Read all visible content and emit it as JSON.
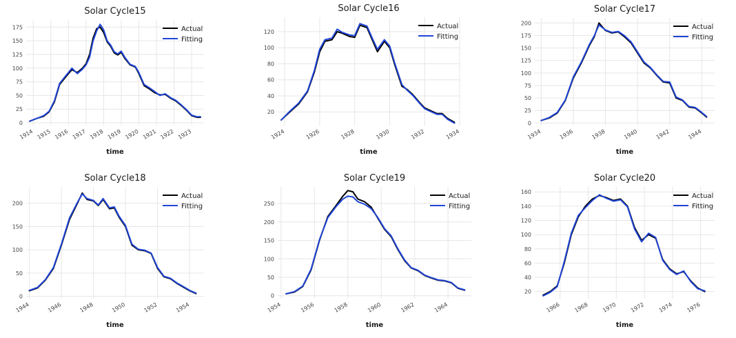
{
  "chart_data": [
    {
      "type": "line",
      "title": "Solar Cycle15",
      "xlabel": "time",
      "ylabel": "",
      "xlim": [
        1913.6,
        1923.7
      ],
      "ylim": [
        -5,
        188
      ],
      "xticks": [
        1914,
        1915,
        1916,
        1917,
        1918,
        1919,
        1920,
        1921,
        1922,
        1923
      ],
      "yticks": [
        0,
        25,
        50,
        75,
        100,
        125,
        150,
        175
      ],
      "legend_position": "top-right",
      "grid": true,
      "series": [
        {
          "name": "Actual",
          "color": "#000000",
          "x": [
            1913.8,
            1914.2,
            1914.6,
            1914.9,
            1915.2,
            1915.5,
            1915.8,
            1916.0,
            1916.2,
            1916.5,
            1916.8,
            1917.0,
            1917.2,
            1917.4,
            1917.6,
            1917.8,
            1918.0,
            1918.2,
            1918.4,
            1918.6,
            1918.8,
            1919.0,
            1919.2,
            1919.5,
            1919.8,
            1920.0,
            1920.3,
            1920.6,
            1920.9,
            1921.2,
            1921.5,
            1921.8,
            1922.1,
            1922.4,
            1922.7,
            1923.0,
            1923.3,
            1923.5
          ],
          "y": [
            3,
            8,
            12,
            20,
            38,
            70,
            82,
            90,
            97,
            92,
            100,
            108,
            125,
            155,
            172,
            175,
            165,
            148,
            140,
            128,
            124,
            129,
            118,
            106,
            102,
            90,
            68,
            62,
            55,
            51,
            52,
            45,
            40,
            32,
            23,
            13,
            10,
            10
          ]
        },
        {
          "name": "Fitting",
          "color": "#1f44d6",
          "x": [
            1913.8,
            1914.2,
            1914.6,
            1914.9,
            1915.2,
            1915.5,
            1915.8,
            1916.0,
            1916.2,
            1916.5,
            1916.8,
            1917.0,
            1917.2,
            1917.4,
            1917.6,
            1917.8,
            1918.0,
            1918.2,
            1918.4,
            1918.6,
            1918.8,
            1919.0,
            1919.2,
            1919.5,
            1919.8,
            1920.0,
            1920.3,
            1920.6,
            1920.9,
            1921.2,
            1921.5,
            1921.8,
            1922.1,
            1922.4,
            1922.7,
            1923.0,
            1923.3,
            1923.5
          ],
          "y": [
            3,
            8,
            13,
            21,
            40,
            72,
            84,
            92,
            100,
            90,
            98,
            106,
            120,
            150,
            168,
            180,
            170,
            150,
            142,
            130,
            126,
            131,
            120,
            107,
            103,
            92,
            70,
            64,
            57,
            50,
            53,
            46,
            41,
            33,
            24,
            14,
            11,
            11
          ]
        }
      ]
    },
    {
      "type": "line",
      "title": "Solar Cycle16",
      "xlabel": "time",
      "ylabel": "",
      "xlim": [
        1923.6,
        1934.0
      ],
      "ylim": [
        3,
        138
      ],
      "xticks": [
        1924,
        1926,
        1928,
        1930,
        1932,
        1934
      ],
      "yticks": [
        20,
        40,
        60,
        80,
        100,
        120
      ],
      "legend_position": "top-right",
      "grid": true,
      "series": [
        {
          "name": "Actual",
          "color": "#000000",
          "x": [
            1923.8,
            1924.3,
            1924.8,
            1925.3,
            1925.7,
            1926.0,
            1926.3,
            1926.7,
            1927.0,
            1927.3,
            1927.7,
            1928.0,
            1928.3,
            1928.7,
            1929.0,
            1929.3,
            1929.7,
            1930.0,
            1930.3,
            1930.7,
            1931.0,
            1931.3,
            1931.7,
            1932.0,
            1932.3,
            1932.7,
            1933.0,
            1933.3,
            1933.7
          ],
          "y": [
            10,
            20,
            30,
            45,
            70,
            95,
            108,
            110,
            120,
            118,
            114,
            113,
            128,
            125,
            110,
            95,
            108,
            100,
            78,
            52,
            48,
            42,
            32,
            25,
            22,
            18,
            18,
            12,
            7
          ]
        },
        {
          "name": "Fitting",
          "color": "#1f44d6",
          "x": [
            1923.8,
            1924.3,
            1924.8,
            1925.3,
            1925.7,
            1926.0,
            1926.3,
            1926.7,
            1927.0,
            1927.3,
            1927.7,
            1928.0,
            1928.3,
            1928.7,
            1929.0,
            1929.3,
            1929.7,
            1930.0,
            1930.3,
            1930.7,
            1931.0,
            1931.3,
            1931.7,
            1932.0,
            1932.3,
            1932.7,
            1933.0,
            1933.3,
            1933.7
          ],
          "y": [
            10,
            21,
            31,
            46,
            72,
            98,
            110,
            112,
            123,
            119,
            116,
            115,
            130,
            127,
            112,
            98,
            110,
            102,
            80,
            54,
            47,
            41,
            31,
            24,
            21,
            17,
            17,
            11,
            6
          ]
        }
      ]
    },
    {
      "type": "line",
      "title": "Solar Cycle17",
      "xlabel": "time",
      "ylabel": "",
      "xlim": [
        1933.6,
        1944.8
      ],
      "ylim": [
        -5,
        210
      ],
      "xticks": [
        1934,
        1936,
        1938,
        1940,
        1942,
        1944
      ],
      "yticks": [
        0,
        25,
        50,
        75,
        100,
        125,
        150,
        175,
        200
      ],
      "legend_position": "top-right",
      "grid": true,
      "series": [
        {
          "name": "Actual",
          "color": "#000000",
          "x": [
            1934.0,
            1934.5,
            1935.0,
            1935.5,
            1936.0,
            1936.5,
            1937.0,
            1937.3,
            1937.6,
            1938.0,
            1938.4,
            1938.8,
            1939.2,
            1939.6,
            1940.0,
            1940.4,
            1940.8,
            1941.2,
            1941.6,
            1942.0,
            1942.4,
            1942.8,
            1943.2,
            1943.6,
            1944.0,
            1944.3
          ],
          "y": [
            5,
            10,
            20,
            45,
            90,
            120,
            155,
            172,
            200,
            185,
            180,
            182,
            172,
            160,
            140,
            120,
            110,
            95,
            82,
            80,
            50,
            45,
            32,
            30,
            20,
            12
          ]
        },
        {
          "name": "Fitting",
          "color": "#1f44d6",
          "x": [
            1934.0,
            1934.5,
            1935.0,
            1935.5,
            1936.0,
            1936.5,
            1937.0,
            1937.3,
            1937.6,
            1938.0,
            1938.4,
            1938.8,
            1939.2,
            1939.6,
            1940.0,
            1940.4,
            1940.8,
            1941.2,
            1941.6,
            1942.0,
            1942.4,
            1942.8,
            1943.2,
            1943.6,
            1944.0,
            1944.3
          ],
          "y": [
            5,
            11,
            21,
            46,
            92,
            122,
            157,
            174,
            196,
            186,
            181,
            183,
            174,
            162,
            142,
            122,
            111,
            96,
            83,
            82,
            52,
            46,
            33,
            31,
            21,
            13
          ]
        }
      ]
    },
    {
      "type": "line",
      "title": "Solar Cycle18",
      "xlabel": "time",
      "ylabel": "",
      "xlim": [
        1943.8,
        1954.9
      ],
      "ylim": [
        -5,
        235
      ],
      "xticks": [
        1944,
        1946,
        1948,
        1950,
        1952,
        1954
      ],
      "yticks": [
        0,
        50,
        100,
        150,
        200
      ],
      "legend_position": "top-right",
      "grid": true,
      "series": [
        {
          "name": "Actual",
          "color": "#000000",
          "x": [
            1944.0,
            1944.5,
            1945.0,
            1945.5,
            1946.0,
            1946.5,
            1947.0,
            1947.3,
            1947.6,
            1948.0,
            1948.3,
            1948.6,
            1949.0,
            1949.3,
            1949.6,
            1950.0,
            1950.4,
            1950.8,
            1951.2,
            1951.6,
            1952.0,
            1952.4,
            1952.8,
            1953.2,
            1953.6,
            1954.0,
            1954.4
          ],
          "y": [
            12,
            18,
            35,
            60,
            110,
            165,
            200,
            222,
            208,
            205,
            195,
            208,
            188,
            190,
            170,
            150,
            110,
            100,
            98,
            92,
            60,
            42,
            38,
            28,
            20,
            12,
            6
          ]
        },
        {
          "name": "Fitting",
          "color": "#1f44d6",
          "x": [
            1944.0,
            1944.5,
            1945.0,
            1945.5,
            1946.0,
            1946.5,
            1947.0,
            1947.3,
            1947.6,
            1948.0,
            1948.3,
            1948.6,
            1949.0,
            1949.3,
            1949.6,
            1950.0,
            1950.4,
            1950.8,
            1951.2,
            1951.6,
            1952.0,
            1952.4,
            1952.8,
            1953.2,
            1953.6,
            1954.0,
            1954.4
          ],
          "y": [
            13,
            19,
            36,
            62,
            112,
            168,
            202,
            220,
            210,
            206,
            196,
            210,
            190,
            192,
            172,
            152,
            112,
            101,
            99,
            93,
            62,
            43,
            39,
            29,
            21,
            13,
            7
          ]
        }
      ]
    },
    {
      "type": "line",
      "title": "Solar Cycle19",
      "xlabel": "time",
      "ylabel": "",
      "xlim": [
        1953.8,
        1965.4
      ],
      "ylim": [
        -8,
        295
      ],
      "xticks": [
        1954,
        1956,
        1958,
        1960,
        1962,
        1964
      ],
      "yticks": [
        0,
        50,
        100,
        150,
        200,
        250
      ],
      "legend_position": "top-right",
      "grid": true,
      "series": [
        {
          "name": "Actual",
          "color": "#000000",
          "x": [
            1954.3,
            1954.8,
            1955.3,
            1955.8,
            1956.3,
            1956.8,
            1957.3,
            1957.7,
            1958.0,
            1958.3,
            1958.6,
            1959.0,
            1959.4,
            1959.8,
            1960.2,
            1960.6,
            1961.0,
            1961.4,
            1961.8,
            1962.2,
            1962.6,
            1963.0,
            1963.4,
            1963.8,
            1964.2,
            1964.6,
            1965.0
          ],
          "y": [
            5,
            10,
            25,
            70,
            150,
            215,
            245,
            270,
            285,
            282,
            262,
            255,
            240,
            210,
            180,
            160,
            125,
            95,
            75,
            68,
            55,
            48,
            42,
            40,
            35,
            20,
            15
          ]
        },
        {
          "name": "Fitting",
          "color": "#1f44d6",
          "x": [
            1954.3,
            1954.8,
            1955.3,
            1955.8,
            1956.3,
            1956.8,
            1957.3,
            1957.7,
            1958.0,
            1958.3,
            1958.6,
            1959.0,
            1959.4,
            1959.8,
            1960.2,
            1960.6,
            1961.0,
            1961.4,
            1961.8,
            1962.2,
            1962.6,
            1963.0,
            1963.4,
            1963.8,
            1964.2,
            1964.6,
            1965.0
          ],
          "y": [
            5,
            11,
            26,
            72,
            152,
            212,
            242,
            262,
            270,
            268,
            255,
            248,
            236,
            212,
            182,
            162,
            127,
            97,
            76,
            69,
            56,
            49,
            43,
            41,
            36,
            21,
            16
          ]
        }
      ]
    },
    {
      "type": "line",
      "title": "Solar Cycle20",
      "xlabel": "time",
      "ylabel": "",
      "xlim": [
        1964.2,
        1977.0
      ],
      "ylim": [
        10,
        167
      ],
      "xticks": [
        1966,
        1968,
        1970,
        1972,
        1974,
        1976
      ],
      "yticks": [
        20,
        40,
        60,
        80,
        100,
        120,
        140,
        160
      ],
      "legend_position": "top-right",
      "grid": true,
      "series": [
        {
          "name": "Actual",
          "color": "#000000",
          "x": [
            1964.8,
            1965.3,
            1965.8,
            1966.3,
            1966.8,
            1967.3,
            1967.8,
            1968.3,
            1968.8,
            1969.3,
            1969.8,
            1970.3,
            1970.8,
            1971.3,
            1971.8,
            1972.3,
            1972.8,
            1973.3,
            1973.8,
            1974.3,
            1974.8,
            1975.3,
            1975.8,
            1976.3
          ],
          "y": [
            15,
            20,
            28,
            60,
            100,
            125,
            140,
            150,
            155,
            152,
            148,
            150,
            140,
            110,
            92,
            100,
            95,
            65,
            52,
            45,
            48,
            35,
            25,
            20
          ]
        },
        {
          "name": "Fitting",
          "color": "#1f44d6",
          "x": [
            1964.8,
            1965.3,
            1965.8,
            1966.3,
            1966.8,
            1967.3,
            1967.8,
            1968.3,
            1968.8,
            1969.3,
            1969.8,
            1970.3,
            1970.8,
            1971.3,
            1971.8,
            1972.3,
            1972.8,
            1973.3,
            1973.8,
            1974.3,
            1974.8,
            1975.3,
            1975.8,
            1976.3
          ],
          "y": [
            14,
            19,
            27,
            62,
            102,
            127,
            138,
            148,
            156,
            151,
            147,
            149,
            139,
            108,
            90,
            102,
            96,
            64,
            51,
            44,
            49,
            34,
            24,
            21
          ]
        }
      ]
    }
  ]
}
